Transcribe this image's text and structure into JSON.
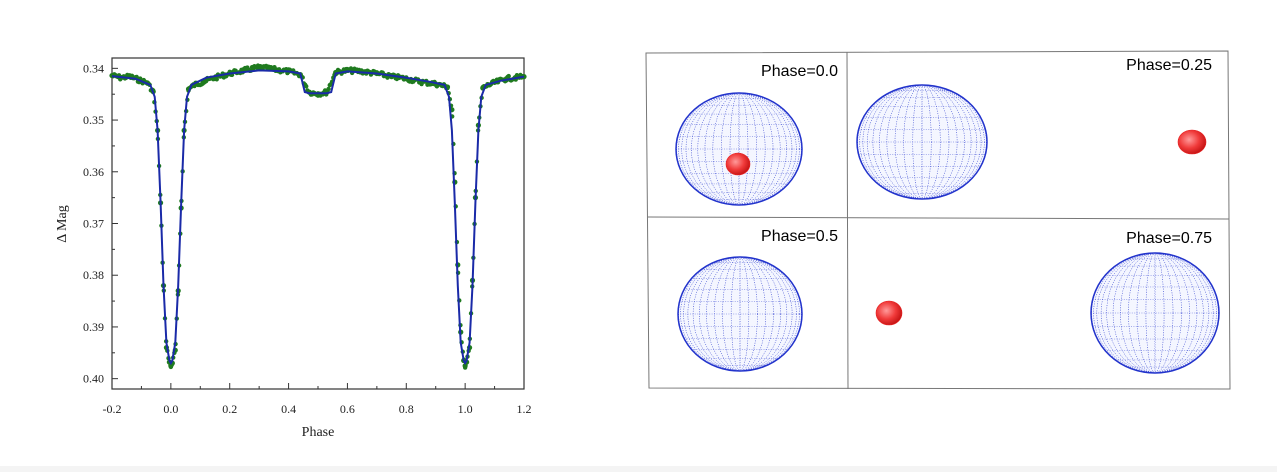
{
  "chart_data": {
    "type": "scatter",
    "xlabel": "Phase",
    "ylabel": "Δ Mag",
    "xlim": [
      -0.2,
      1.2
    ],
    "ylim": [
      0.338,
      0.402
    ],
    "y_inverted": true,
    "x_ticks": [
      "-0.2",
      "0.0",
      "0.2",
      "0.4",
      "0.6",
      "0.8",
      "1.0",
      "1.2"
    ],
    "x_tick_values": [
      -0.2,
      0.0,
      0.2,
      0.4,
      0.6,
      0.8,
      1.0,
      1.2
    ],
    "y_ticks": [
      "0.34",
      "0.35",
      "0.36",
      "0.37",
      "0.38",
      "0.39",
      "0.40"
    ],
    "y_tick_values": [
      0.34,
      0.35,
      0.36,
      0.37,
      0.38,
      0.39,
      0.4
    ],
    "grid": false,
    "series": [
      {
        "kind": "observed",
        "color": "#1f7a1f",
        "x": [
          -0.2,
          -0.17,
          -0.14,
          -0.11,
          -0.08,
          -0.06,
          -0.045,
          -0.035,
          -0.025,
          -0.015,
          -0.005,
          0.0,
          0.005,
          0.015,
          0.025,
          0.035,
          0.045,
          0.06,
          0.08,
          0.11,
          0.15,
          0.2,
          0.25,
          0.3,
          0.35,
          0.4,
          0.44,
          0.47,
          0.5,
          0.53,
          0.56,
          0.6,
          0.65,
          0.7,
          0.75,
          0.8,
          0.85,
          0.9,
          0.94,
          0.955,
          0.965,
          0.975,
          0.985,
          0.995,
          1.0,
          1.005,
          1.015,
          1.025,
          1.035,
          1.045,
          1.06,
          1.08,
          1.11,
          1.14,
          1.17,
          1.2
        ],
        "y": [
          0.3414,
          0.3418,
          0.3416,
          0.3422,
          0.3428,
          0.3445,
          0.352,
          0.366,
          0.382,
          0.394,
          0.3968,
          0.3975,
          0.397,
          0.3945,
          0.383,
          0.367,
          0.352,
          0.344,
          0.3432,
          0.3426,
          0.3418,
          0.341,
          0.3404,
          0.3398,
          0.3402,
          0.3406,
          0.3412,
          0.3446,
          0.3449,
          0.3446,
          0.3408,
          0.3404,
          0.3406,
          0.341,
          0.3416,
          0.342,
          0.3426,
          0.343,
          0.3436,
          0.348,
          0.362,
          0.378,
          0.391,
          0.3965,
          0.3975,
          0.3968,
          0.394,
          0.381,
          0.365,
          0.351,
          0.3438,
          0.3432,
          0.3426,
          0.342,
          0.3418,
          0.3416
        ]
      },
      {
        "kind": "model",
        "color": "#1a2aa8",
        "x": [
          -0.2,
          -0.12,
          -0.07,
          -0.055,
          -0.045,
          -0.035,
          -0.025,
          -0.015,
          -0.005,
          0.0,
          0.005,
          0.015,
          0.025,
          0.035,
          0.045,
          0.055,
          0.07,
          0.12,
          0.2,
          0.3,
          0.4,
          0.44,
          0.455,
          0.47,
          0.53,
          0.545,
          0.56,
          0.6,
          0.7,
          0.8,
          0.88,
          0.93,
          0.945,
          0.955,
          0.965,
          0.975,
          0.985,
          0.995,
          1.0,
          1.005,
          1.015,
          1.025,
          1.035,
          1.045,
          1.055,
          1.07,
          1.12,
          1.2
        ],
        "y": [
          0.3415,
          0.342,
          0.3432,
          0.3455,
          0.352,
          0.366,
          0.382,
          0.393,
          0.3965,
          0.397,
          0.3965,
          0.393,
          0.382,
          0.366,
          0.352,
          0.3455,
          0.3432,
          0.3418,
          0.341,
          0.3404,
          0.3406,
          0.341,
          0.3446,
          0.3448,
          0.3448,
          0.3446,
          0.341,
          0.3406,
          0.341,
          0.3418,
          0.3426,
          0.3432,
          0.3455,
          0.352,
          0.366,
          0.382,
          0.393,
          0.3965,
          0.397,
          0.3965,
          0.393,
          0.382,
          0.366,
          0.352,
          0.3455,
          0.3432,
          0.3424,
          0.3416
        ]
      }
    ]
  },
  "panels": [
    {
      "label": "Phase=0.0"
    },
    {
      "label": "Phase=0.25"
    },
    {
      "label": "Phase=0.5"
    },
    {
      "label": "Phase=0.75"
    }
  ],
  "colors": {
    "primary_star": "#2233cc",
    "secondary_star": "#e82020"
  }
}
